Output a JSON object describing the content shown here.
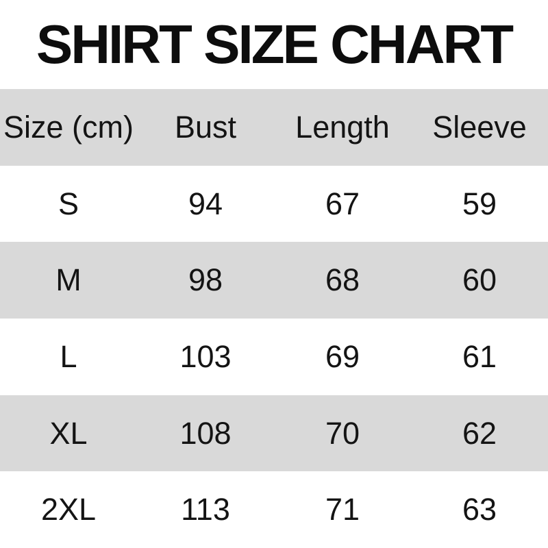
{
  "title": "SHIRT SIZE CHART",
  "colors": {
    "background": "#ffffff",
    "row_alt": "#d9d9d9",
    "row": "#ffffff",
    "text": "#141414",
    "title_text": "#0d0d0d"
  },
  "chart_data": {
    "type": "table",
    "title": "SHIRT SIZE CHART",
    "columns": [
      "Size (cm)",
      "Bust",
      "Length",
      "Sleeve"
    ],
    "rows": [
      [
        "S",
        "94",
        "67",
        "59"
      ],
      [
        "M",
        "98",
        "68",
        "60"
      ],
      [
        "L",
        "103",
        "69",
        "61"
      ],
      [
        "XL",
        "108",
        "70",
        "62"
      ],
      [
        "2XL",
        "113",
        "71",
        "63"
      ]
    ],
    "layout": {
      "row_shading": "alternating, header and even data rows gray",
      "text_align": "center",
      "grid": "none"
    }
  }
}
